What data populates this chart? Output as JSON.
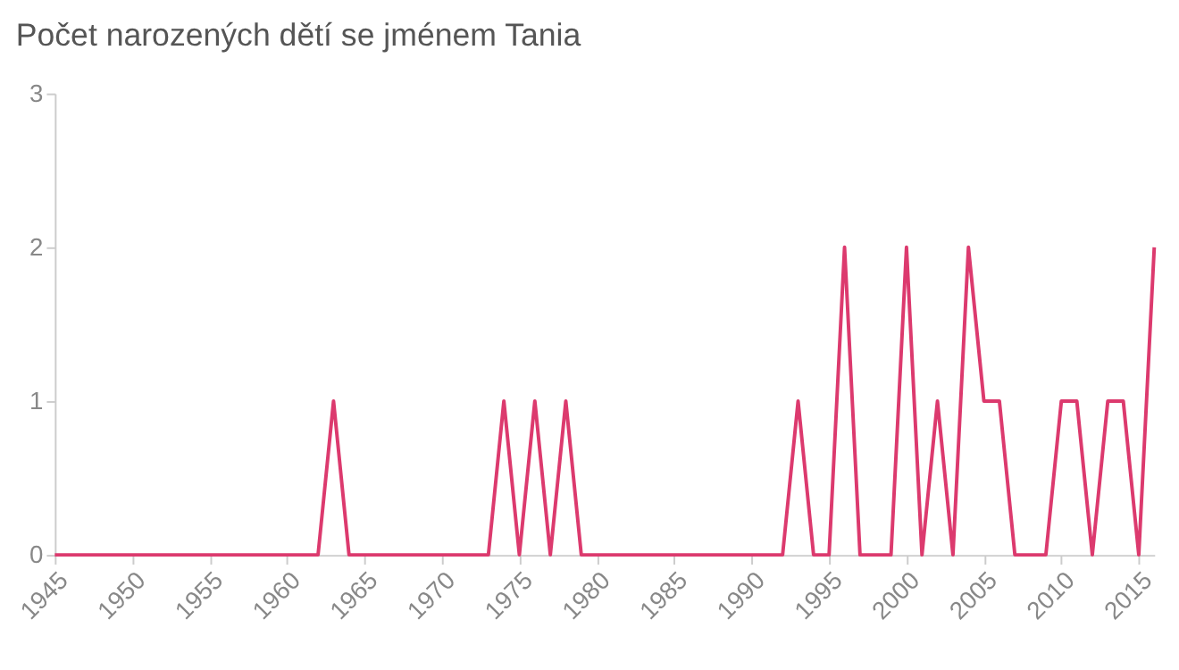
{
  "chart_data": {
    "type": "line",
    "title": "Počet narozených dětí se jménem Tania",
    "x": [
      1945,
      1946,
      1947,
      1948,
      1949,
      1950,
      1951,
      1952,
      1953,
      1954,
      1955,
      1956,
      1957,
      1958,
      1959,
      1960,
      1961,
      1962,
      1963,
      1964,
      1965,
      1966,
      1967,
      1968,
      1969,
      1970,
      1971,
      1972,
      1973,
      1974,
      1975,
      1976,
      1977,
      1978,
      1979,
      1980,
      1981,
      1982,
      1983,
      1984,
      1985,
      1986,
      1987,
      1988,
      1989,
      1990,
      1991,
      1992,
      1993,
      1994,
      1995,
      1996,
      1997,
      1998,
      1999,
      2000,
      2001,
      2002,
      2003,
      2004,
      2005,
      2006,
      2007,
      2008,
      2009,
      2010,
      2011,
      2012,
      2013,
      2014,
      2015,
      2016
    ],
    "series": [
      {
        "color": "#dc3a6e",
        "values": [
          0,
          0,
          0,
          0,
          0,
          0,
          0,
          0,
          0,
          0,
          0,
          0,
          0,
          0,
          0,
          0,
          0,
          0,
          1,
          0,
          0,
          0,
          0,
          0,
          0,
          0,
          0,
          0,
          0,
          1,
          0,
          1,
          0,
          1,
          0,
          0,
          0,
          0,
          0,
          0,
          0,
          0,
          0,
          0,
          0,
          0,
          0,
          0,
          1,
          0,
          0,
          2,
          0,
          0,
          0,
          2,
          0,
          1,
          0,
          2,
          1,
          1,
          0,
          0,
          0,
          1,
          1,
          0,
          1,
          1,
          0,
          2
        ]
      }
    ],
    "xlim": [
      1945,
      2016
    ],
    "xticks": [
      1945,
      1950,
      1955,
      1960,
      1965,
      1970,
      1975,
      1980,
      1985,
      1990,
      1995,
      2000,
      2005,
      2010,
      2015
    ],
    "ylim": [
      0,
      3
    ],
    "yticks": [
      0,
      1,
      2,
      3
    ],
    "grid": false,
    "legend": false,
    "marker": "none",
    "line_style": "solid"
  }
}
